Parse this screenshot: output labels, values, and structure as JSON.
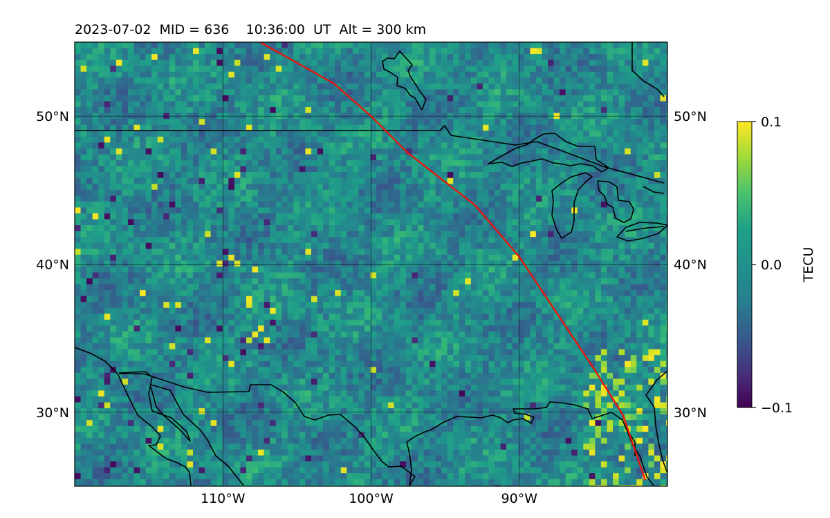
{
  "chart_data": {
    "type": "heatmap",
    "title": "2023-07-02  MID = 636    10:36:00  UT  Alt = 300 km",
    "xlabel": "",
    "ylabel": "",
    "xlim": [
      -120,
      -80
    ],
    "ylim": [
      25,
      55
    ],
    "x_ticks": [
      {
        "value": -110,
        "label": "110°W"
      },
      {
        "value": -100,
        "label": "100°W"
      },
      {
        "value": -90,
        "label": "90°W"
      }
    ],
    "y_ticks": [
      {
        "value": 30,
        "label": "30°N"
      },
      {
        "value": 40,
        "label": "40°N"
      },
      {
        "value": 50,
        "label": "50°N"
      }
    ],
    "grid": true,
    "colormap": "viridis",
    "colorbar": {
      "label": "TECU",
      "range": [
        -0.1,
        0.1
      ],
      "ticks": [
        {
          "value": 0.1,
          "label": "0.1"
        },
        {
          "value": 0.0,
          "label": "0.0"
        },
        {
          "value": -0.1,
          "label": "−0.1"
        }
      ]
    },
    "overlay_line": {
      "color": "#e8150c",
      "points": [
        [
          -107.5,
          55
        ],
        [
          -102.5,
          52.2
        ],
        [
          -100,
          50
        ],
        [
          -97.5,
          47.5
        ],
        [
          -93,
          44
        ],
        [
          -90,
          40.5
        ],
        [
          -87,
          36
        ],
        [
          -85,
          33
        ],
        [
          -83,
          29.8
        ],
        [
          -81.5,
          25.4
        ]
      ]
    }
  }
}
